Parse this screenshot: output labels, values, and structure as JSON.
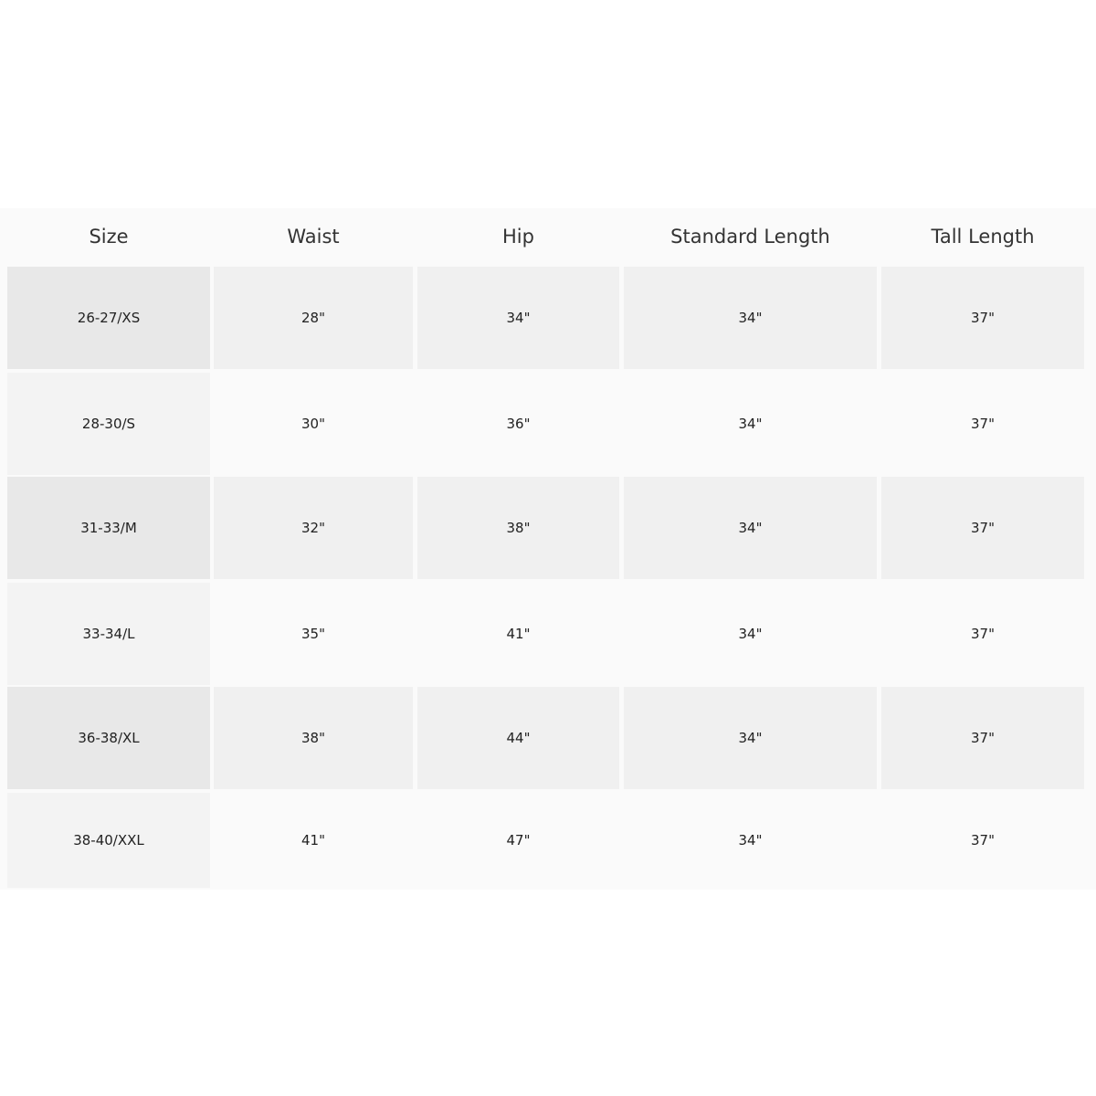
{
  "size_chart": {
    "headers": [
      "Size",
      "Waist",
      "Hip",
      "Standard Length",
      "Tall Length"
    ],
    "rows": [
      [
        "26-27/XS",
        "28\"",
        "34\"",
        "34\"",
        "37\""
      ],
      [
        "28-30/S",
        "30\"",
        "36\"",
        "34\"",
        "37\""
      ],
      [
        "31-33/M",
        "32\"",
        "38\"",
        "34\"",
        "37\""
      ],
      [
        "33-34/L",
        "35\"",
        "41\"",
        "34\"",
        "37\""
      ],
      [
        "36-38/XL",
        "38\"",
        "44\"",
        "34\"",
        "37\""
      ],
      [
        "38-40/XXL",
        "41\"",
        "47\"",
        "34\"",
        "37\""
      ]
    ],
    "colors": {
      "header_bg": "#fafafa",
      "odd_first_col": "#e8e8e8",
      "odd_cells": "#f0f0f0",
      "even_first_col": "#f3f3f3",
      "even_cells": "#fafafa"
    }
  }
}
